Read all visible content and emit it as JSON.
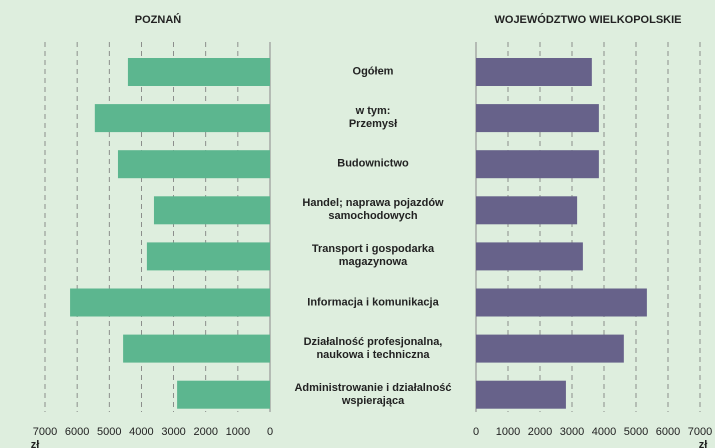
{
  "chart_data": {
    "type": "butterfly",
    "categories": [
      "Ogółem",
      "w tym:\nPrzemysł",
      "Budownictwo",
      "Handel; naprawa pojazdów\nsamochodowych",
      "Transport i gospodarka\nmagazynowa",
      "Informacja i komunikacja",
      "Działalność profesjonalna,\nnaukowa i techniczna",
      "Administrowanie i działalność\nwspierająca"
    ],
    "series": [
      {
        "name": "POZNAŃ",
        "color": "#5cb68f",
        "values": [
          4420,
          5450,
          4730,
          3610,
          3830,
          6220,
          4570,
          2890
        ]
      },
      {
        "name": "WOJEWÓDZTWO WIELKOPOLSKIE",
        "color": "#67628a",
        "values": [
          3620,
          3840,
          3840,
          3160,
          3340,
          5340,
          4620,
          2810
        ]
      }
    ],
    "xlim": [
      0,
      7000
    ],
    "xticks": [
      0,
      1000,
      2000,
      3000,
      4000,
      5000,
      6000,
      7000
    ],
    "unit": "zł",
    "grid": true
  }
}
